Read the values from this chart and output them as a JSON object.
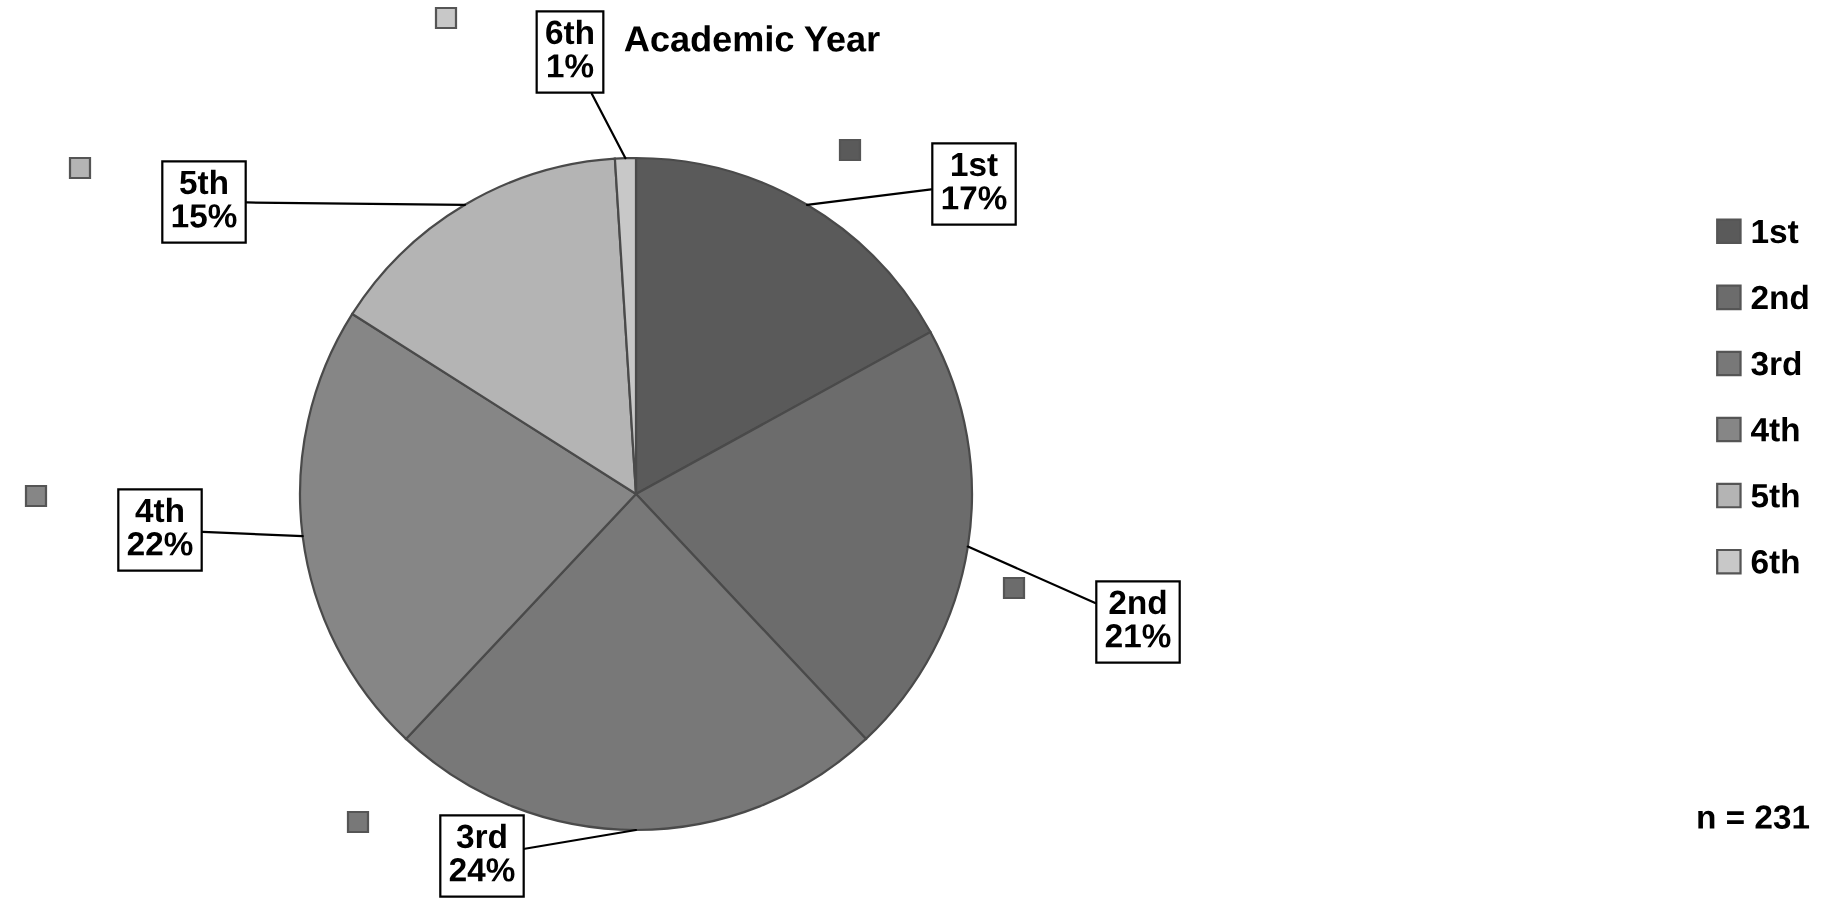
{
  "chart_data": {
    "type": "pie",
    "title": "Academic Year",
    "categories": [
      "1st",
      "2nd",
      "3rd",
      "4th",
      "5th",
      "6th"
    ],
    "values": [
      17,
      21,
      24,
      22,
      15,
      1
    ],
    "colors": [
      "#5a5a5a",
      "#6c6c6c",
      "#787878",
      "#868686",
      "#b4b4b4",
      "#c8c8c8"
    ],
    "value_labels": [
      "1st\n17%",
      "2nd\n21%",
      "3rd\n24%",
      "4th\n22%",
      "5th\n15%",
      "6th\n1%"
    ],
    "legend": "right",
    "annotations": [
      "n = 231"
    ]
  }
}
